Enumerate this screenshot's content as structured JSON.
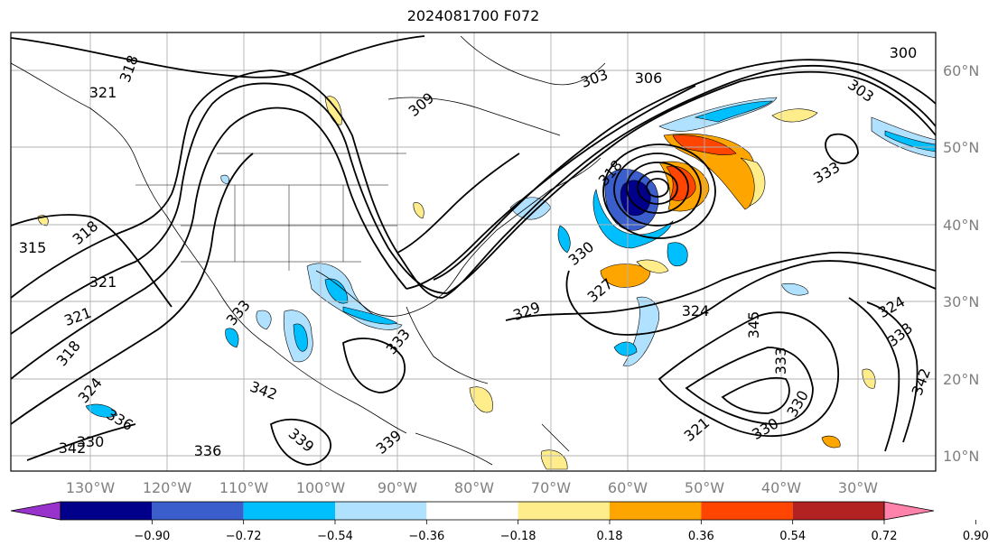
{
  "title": "2024081700 F072",
  "map": {
    "longitude_labels": [
      "130°W",
      "120°W",
      "110°W",
      "100°W",
      "90°W",
      "80°W",
      "70°W",
      "60°W",
      "50°W",
      "40°W",
      "30°W"
    ],
    "latitude_labels": [
      "60°N",
      "50°N",
      "40°N",
      "30°N",
      "20°N",
      "10°N"
    ],
    "contour_labels": [
      "300",
      "303",
      "303",
      "306",
      "309",
      "318",
      "321",
      "318",
      "315",
      "321",
      "321",
      "318",
      "324",
      "333",
      "342",
      "339",
      "336",
      "342",
      "333",
      "330",
      "327",
      "324",
      "321",
      "330",
      "333",
      "330",
      "324",
      "333",
      "336",
      "339",
      "342",
      "345",
      "330",
      "333",
      "329",
      "318"
    ]
  },
  "colorbar": {
    "tick_labels": [
      "−0.90",
      "−0.72",
      "−0.54",
      "−0.36",
      "−0.18",
      "0.18",
      "0.36",
      "0.54",
      "0.72",
      "0.90"
    ],
    "colors": [
      "#9932cc",
      "#00008b",
      "#3a5fcd",
      "#00bfff",
      "#b0e2ff",
      "#ffffff",
      "#ffec8b",
      "#ffa500",
      "#ff4500",
      "#b22222",
      "#ff82ab"
    ]
  }
}
